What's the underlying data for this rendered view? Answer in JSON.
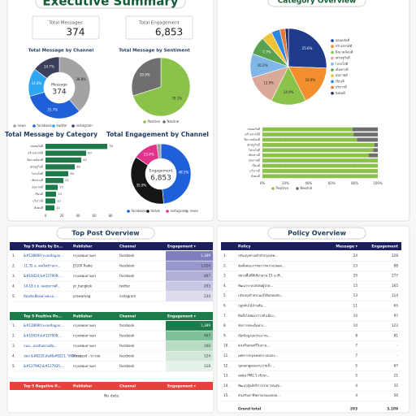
{
  "header": {
    "title": "Executive Summary",
    "category_title": "Category Overview"
  },
  "kpis": [
    {
      "label": "Total Messages",
      "value": "374"
    },
    {
      "label": "Total Engagement",
      "value": "6,853"
    }
  ],
  "chart_data": [
    {
      "type": "pie",
      "donut": true,
      "title": "Total Message by Channel",
      "center_text": [
        "Message",
        "374"
      ],
      "categories": [
        "news",
        "facebook",
        "twitter",
        "instagram"
      ],
      "values": [
        38.8,
        31.7,
        14.8,
        14.7
      ],
      "value_labels": [
        "38.8%",
        "31.7%",
        "14.8%",
        "14.7%"
      ],
      "colors": [
        "#a3a3a3",
        "#1f5fd8",
        "#2ea6f2",
        "#3a3f5c"
      ]
    },
    {
      "type": "pie",
      "donut": false,
      "title": "Total Message by Sentiment",
      "categories": [
        "Positive",
        "Neutral"
      ],
      "values": [
        70.1,
        29.9
      ],
      "value_labels": [
        "70.1%",
        "29.9%"
      ],
      "colors": [
        "#8bc34a",
        "#6f6f6f"
      ]
    },
    {
      "type": "bar",
      "orientation": "horizontal",
      "title": "Total Message by Category",
      "categories": [
        "ปลอดภัยดี",
        "สร้างสรรค์ดี",
        "สิ่งแวดล้อมดี",
        "เศรษฐกิจดี",
        "โปร่งใสดี",
        "เดินทางดี",
        "สุขภาพดี",
        "เรียนดี",
        "บริหารดี",
        "สังคมดี"
      ],
      "values": [
        76,
        50,
        44,
        36,
        28,
        22,
        15,
        13,
        12,
        11
      ],
      "color": "#1e7a4a",
      "xlim": [
        0,
        80
      ],
      "xticks": [
        0,
        20,
        40,
        60,
        80
      ]
    },
    {
      "type": "pie",
      "donut": true,
      "title": "Total Engagement by Channel",
      "center_text": [
        "Engagement",
        "6,853"
      ],
      "categories": [
        "facebook",
        "tiktok",
        "instagram",
        "news"
      ],
      "values": [
        48.5,
        35.9,
        13.4,
        2.2
      ],
      "value_labels": [
        "48.5%",
        "35.9%",
        "13.4%",
        null
      ],
      "colors": [
        "#1f5fd8",
        "#151515",
        "#e0338a",
        "#a3a3a3"
      ]
    },
    {
      "type": "pie",
      "donut": false,
      "categories": [
        "ปลอดภัยดี",
        "สร้างสรรค์ดี",
        "สิ่งแวดล้อมดี",
        "เศรษฐกิจดี",
        "โปร่งใสดี",
        "เดินทางดี",
        "สุขภาพดี",
        "เรียนดี",
        "บริหารดี",
        "สังคมดี"
      ],
      "values": [
        25.6,
        16.9,
        14.9,
        12.9,
        10.2,
        7.7,
        4.5,
        3.6,
        2.3,
        1.4
      ],
      "value_labels": [
        "25.6%",
        "16.9%",
        "14.9%",
        "12.9%",
        "10.2%",
        "7.7%",
        null,
        null,
        null,
        null
      ],
      "colors": [
        "#1f3b8c",
        "#f28e2b",
        "#8bc34a",
        "#d9a99a",
        "#7fb8e6",
        "#59a14f",
        "#f1c232",
        "#2e86de",
        "#e07b39",
        "#1b2a5c"
      ]
    },
    {
      "type": "bar",
      "orientation": "horizontal",
      "stacked": true,
      "categories": [
        "ปลอดภัยดี",
        "สร้างสรรค์ดี",
        "สิ่งแวดล้อมดี",
        "เศรษฐกิจดี",
        "โปร่งใสดี",
        "เดินทางดี",
        "สุขภาพดี",
        "เรียนดี",
        "บริหารดี",
        "สังคมดี"
      ],
      "series": [
        {
          "name": "Positive",
          "color": "#8bc34a",
          "values": [
            78,
            79,
            82,
            97,
            96,
            92,
            100,
            100,
            100,
            100
          ]
        },
        {
          "name": "Neutral",
          "color": "#6f6f6f",
          "values": [
            22,
            21,
            18,
            3,
            4,
            8,
            0,
            0,
            0,
            0
          ]
        }
      ],
      "xlim": [
        0,
        100
      ],
      "grid": true,
      "xticks": [
        {
          "value": 0,
          "label": "0%"
        },
        {
          "value": 20,
          "label": "20%"
        },
        {
          "value": 40,
          "label": "40%"
        },
        {
          "value": 60,
          "label": "60%"
        },
        {
          "value": 80,
          "label": "80%"
        },
        {
          "value": 100,
          "label": "100%"
        }
      ]
    }
  ],
  "top_post": {
    "title": "Top Post Overview",
    "tables": [
      {
        "columns": [
          "Top 5 Posts by En...",
          "Publisher",
          "Channel",
          "Engagement ▾"
        ],
        "rows": [
          [
            "1.",
            "&#128690;ระบบข้อมูลถ...",
            "กรุงเทพมหานคร",
            "facebook",
            "1,389"
          ],
          [
            "2.",
            "11.35 น. สดเปิดบ้านกร...",
            "JS100 Radio",
            "facebook",
            "1,024"
          ],
          [
            "3.",
            "&#10024;&#127909;...",
            "กรุงเทพมหานคร",
            "facebook",
            "467"
          ],
          [
            "4.",
            "14-18 ก.ย. ผลสุขภาพดี...",
            "pr_bangkok",
            "twitter",
            "293"
          ],
          [
            "5.",
            "ต้อนรับเพื่อนทางทะเล...",
            "praewmag",
            "instagram",
            "234"
          ]
        ]
      },
      {
        "columns": [
          "Top 5 Positive Po...",
          "Publisher",
          "Channel",
          "Engagement ▾"
        ],
        "rows": [
          [
            "1.",
            "&#128690;ระบบข้อมูลถ...",
            "กรุงเทพมหานคร",
            "facebook",
            "1,389"
          ],
          [
            "2.",
            "&#10024;&#127909;...",
            "กรุงเทพมหานคร",
            "facebook",
            "467"
          ],
          [
            "3.",
            "ถนน...แบ่งปันทางเดิน...",
            "กรุงเทพมหานคร",
            "facebook",
            "168"
          ],
          [
            "4.",
            "ขอบ &#8220;สันติ&#8221; ให้มีความ...",
            "Khaosod - ข่าวสด",
            "facebook",
            "124"
          ],
          [
            "5.",
            "&#127992;&#127935;...",
            "กรุงเทพมหานคร",
            "facebook",
            "118"
          ]
        ]
      },
      {
        "columns": [
          "Top 5 Negative P...",
          "Publisher",
          "Channel",
          "Engagement ▾"
        ],
        "rows": [],
        "empty_text": "No data"
      }
    ]
  },
  "policy": {
    "title": "Policy Overview",
    "columns": [
      "Policy",
      "Message ▾",
      "Engagement"
    ],
    "rows": [
      [
        "1.",
        "ปรับปรุงทางเท้าทั่วกรุงเทพ...",
        "24",
        "128"
      ],
      [
        "2.",
        "จัดตั้งคณะกรรมการความปลอด...",
        "23",
        "88"
      ],
      [
        "3.",
        "ขยายพื้นที่สีเขียวสวน 15 นาที...",
        "20",
        "277"
      ],
      [
        "4.",
        "พัฒนาระบบส่งต่อผู้ป่วย...",
        "15",
        "165"
      ],
      [
        "5.",
        "ปรับปรุงป้ายรถเมล์ให้ปลอดภัย...",
        "13",
        "114"
      ],
      [
        "6.",
        "ปลูกต้นไม้ล้านต้น...",
        "11",
        "65"
      ],
      [
        "7.",
        "ติดตั้งไฟส่องสว่างทั่วเมือง...",
        "10",
        "97"
      ],
      [
        "8.",
        "จัดการขยะต้นทาง...",
        "10",
        "123"
      ],
      [
        "9.",
        "เปิดข้อมูลงบประมาณ...",
        "8",
        "81"
      ],
      [
        "10.",
        "ส่งเสริมดนตรีในสวน...",
        "7",
        "-"
      ],
      [
        "11.",
        "เทศกาลกรุงเทพกลางแปลง...",
        "7",
        "-"
      ],
      [
        "12.",
        "ขุดลอกคูคลองระบายน้ำ...",
        "5",
        "67"
      ],
      [
        "13.",
        "ลดฝุ่น PM2.5 เชิงรุก...",
        "5",
        "21"
      ],
      [
        "14.",
        "พัฒนาศูนย์บริการสาธารณสุข...",
        "4",
        "35"
      ],
      [
        "15.",
        "ส่งเสริมอาชีพหาบเร่แผงลอย...",
        "4",
        "56"
      ]
    ],
    "total": [
      "Grand total",
      "203",
      "3,109"
    ]
  }
}
